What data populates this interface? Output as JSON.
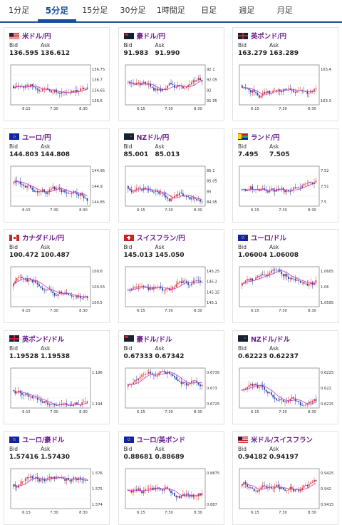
{
  "tabs": [
    {
      "label": "1分足",
      "active": false
    },
    {
      "label": "5分足",
      "active": true
    },
    {
      "label": "15分足",
      "active": false
    },
    {
      "label": "30分足",
      "active": false
    },
    {
      "label": "1時間足",
      "active": false
    },
    {
      "label": "日足",
      "active": false
    },
    {
      "label": "週足",
      "active": false
    },
    {
      "label": "月足",
      "active": false
    }
  ],
  "bid_label": "Bid",
  "ask_label": "Ask",
  "x_ticks": [
    "6:15",
    "7:30",
    "8:30"
  ],
  "colors": {
    "up": "#e03131",
    "down": "#1c3ca8",
    "ma1": "#c838c8",
    "ma2": "#2e8b57",
    "accent": "#1b4f9c",
    "pair": "#6a1f8e"
  },
  "cards": [
    {
      "pair": "米ドル/円",
      "flag": "us-jp",
      "bid": "136.595",
      "ask": "136.612",
      "y_ticks": [
        "136.75",
        "136.7",
        "136.65",
        "136.6"
      ]
    },
    {
      "pair": "豪ドル/円",
      "flag": "au-jp",
      "bid": "91.983",
      "ask": "91.990",
      "y_ticks": [
        "92.1",
        "92.05",
        "92",
        "91.95"
      ]
    },
    {
      "pair": "英ポンド/円",
      "flag": "gb-jp",
      "bid": "163.279",
      "ask": "163.289",
      "y_ticks": [
        "163.4",
        "163.3"
      ]
    },
    {
      "pair": "ユーロ/円",
      "flag": "eu-jp",
      "bid": "144.803",
      "ask": "144.808",
      "y_ticks": [
        "144.95",
        "144.9",
        "144.85"
      ]
    },
    {
      "pair": "NZドル/円",
      "flag": "nz-jp",
      "bid": "85.001",
      "ask": "85.013",
      "y_ticks": [
        "85.1",
        "85.05",
        "85",
        "84.95"
      ]
    },
    {
      "pair": "ランド/円",
      "flag": "za-jp",
      "bid": "7.495",
      "ask": "7.505",
      "y_ticks": [
        "7.52",
        "7.51",
        "7.5"
      ]
    },
    {
      "pair": "カナダドル/円",
      "flag": "ca-jp",
      "bid": "100.472",
      "ask": "100.487",
      "y_ticks": [
        "100.6",
        "100.55",
        "100.5"
      ]
    },
    {
      "pair": "スイスフラン/円",
      "flag": "ch-jp",
      "bid": "145.013",
      "ask": "145.050",
      "y_ticks": [
        "145.25",
        "145.2",
        "145.15",
        "145.1"
      ]
    },
    {
      "pair": "ユーロ/ドル",
      "flag": "eu-us",
      "bid": "1.06004",
      "ask": "1.06008",
      "y_ticks": [
        "1.0605",
        "1.06",
        "1.0595"
      ]
    },
    {
      "pair": "英ポンド/ドル",
      "flag": "gb-us",
      "bid": "1.19528",
      "ask": "1.19538",
      "y_ticks": [
        "1.196",
        "1.194"
      ]
    },
    {
      "pair": "豪ドル/ドル",
      "flag": "au-us",
      "bid": "0.67333",
      "ask": "0.67342",
      "y_ticks": [
        "0.6735",
        "0.673",
        "0.6725"
      ]
    },
    {
      "pair": "NZドル/ドル",
      "flag": "nz-us",
      "bid": "0.62223",
      "ask": "0.62237",
      "y_ticks": [
        "0.6225",
        "0.622",
        "0.6215"
      ]
    },
    {
      "pair": "ユーロ/豪ドル",
      "flag": "eu-au",
      "bid": "1.57416",
      "ask": "1.57430",
      "y_ticks": [
        "1.576",
        "1.575",
        "1.574"
      ]
    },
    {
      "pair": "ユーロ/英ポンド",
      "flag": "eu-gb",
      "bid": "0.88681",
      "ask": "0.88689",
      "y_ticks": [
        "0.8875",
        "0.887"
      ]
    },
    {
      "pair": "米ドル/スイスフラン",
      "flag": "us-ch",
      "bid": "0.94182",
      "ask": "0.94197",
      "y_ticks": [
        "0.9425",
        "0.942",
        "0.9415"
      ]
    }
  ]
}
